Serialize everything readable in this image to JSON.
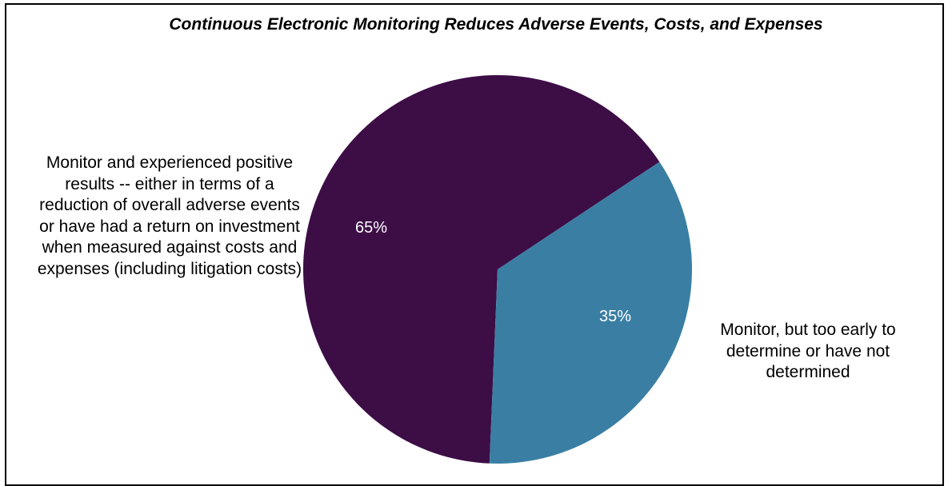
{
  "chart_data": {
    "type": "pie",
    "title": "Continuous Electronic Monitoring Reduces Adverse Events, Costs, and Expenses",
    "categories": [
      "Monitor and experienced positive results -- either in terms of a reduction of overall adverse events or have had a return on investment when measured against costs and expenses (including litigation costs)",
      "Monitor, but too early to determine or have not determined"
    ],
    "values": [
      65,
      35
    ],
    "data_labels": [
      "65%",
      "35%"
    ],
    "colors": [
      "#3d0d46",
      "#3a7fa3"
    ],
    "legend": "none"
  }
}
